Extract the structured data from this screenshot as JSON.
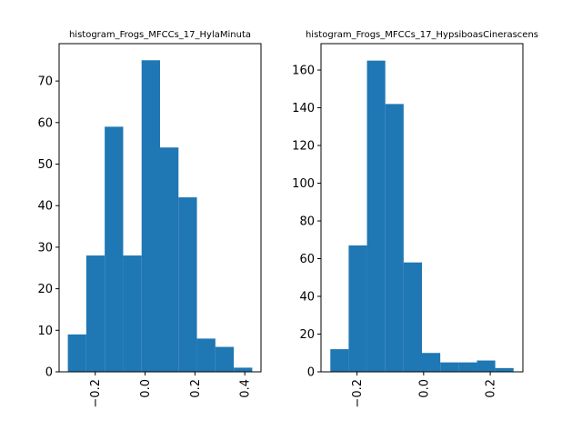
{
  "bar_color": "#1f77b4",
  "chart_data": [
    {
      "type": "bar",
      "title": "histogram_Frogs_MFCCs_17_HylaMinuta",
      "xlabel": "",
      "ylabel": "",
      "bin_edges": [
        -0.31,
        -0.236,
        -0.162,
        -0.088,
        -0.014,
        0.06,
        0.134,
        0.208,
        0.282,
        0.356,
        0.43
      ],
      "values": [
        9,
        28,
        59,
        28,
        75,
        54,
        42,
        8,
        6,
        1
      ],
      "xlim": [
        -0.345,
        0.465
      ],
      "ylim": [
        0,
        79
      ],
      "xticks": [
        -0.2,
        0.0,
        0.2,
        0.4
      ],
      "xtick_labels": [
        "−0.2",
        "0.0",
        "0.2",
        "0.4"
      ],
      "yticks": [
        0,
        10,
        20,
        30,
        40,
        50,
        60,
        70
      ],
      "ytick_labels": [
        "0",
        "10",
        "20",
        "30",
        "40",
        "50",
        "60",
        "70"
      ],
      "grid": false,
      "legend": "none"
    },
    {
      "type": "bar",
      "title": "histogram_Frogs_MFCCs_17_HypsiboasCinerascens",
      "xlabel": "",
      "ylabel": "",
      "bin_edges": [
        -0.28,
        -0.225,
        -0.17,
        -0.115,
        -0.06,
        -0.005,
        0.05,
        0.105,
        0.16,
        0.215,
        0.27
      ],
      "values": [
        12,
        67,
        165,
        142,
        58,
        10,
        5,
        5,
        6,
        2
      ],
      "xlim": [
        -0.308,
        0.298
      ],
      "ylim": [
        0,
        174
      ],
      "xticks": [
        -0.2,
        0.0,
        0.2
      ],
      "xtick_labels": [
        "−0.2",
        "0.0",
        "0.2"
      ],
      "yticks": [
        0,
        20,
        40,
        60,
        80,
        100,
        120,
        140,
        160
      ],
      "ytick_labels": [
        "0",
        "20",
        "40",
        "60",
        "80",
        "100",
        "120",
        "140",
        "160"
      ],
      "grid": false,
      "legend": "none"
    }
  ]
}
